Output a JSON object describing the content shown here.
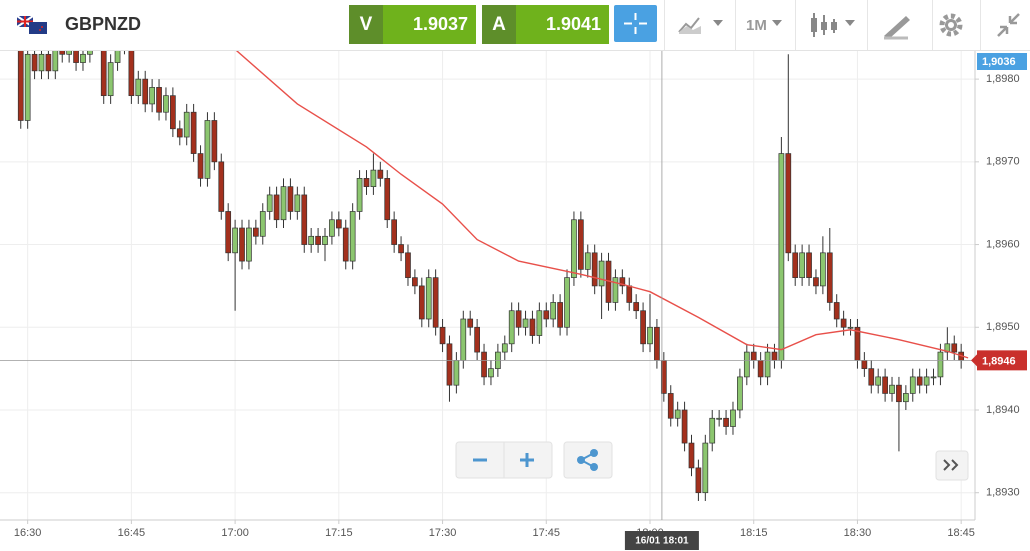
{
  "header": {
    "symbol": "GBPNZD",
    "bid_label": "V",
    "bid": "1.9037",
    "ask_label": "A",
    "ask": "1.9041",
    "timeframe": "1M"
  },
  "chart_data": {
    "type": "candlestick",
    "x": [
      "16:29",
      "16:30",
      "16:31",
      "16:32",
      "16:33",
      "16:34",
      "16:35",
      "16:36",
      "16:37",
      "16:38",
      "16:39",
      "16:40",
      "16:41",
      "16:42",
      "16:43",
      "16:44",
      "16:45",
      "16:46",
      "16:47",
      "16:48",
      "16:49",
      "16:50",
      "16:51",
      "16:52",
      "16:53",
      "16:54",
      "16:55",
      "16:56",
      "16:57",
      "16:58",
      "16:59",
      "17:00",
      "17:01",
      "17:02",
      "17:03",
      "17:04",
      "17:05",
      "17:06",
      "17:07",
      "17:08",
      "17:09",
      "17:10",
      "17:11",
      "17:12",
      "17:13",
      "17:14",
      "17:15",
      "17:16",
      "17:17",
      "17:18",
      "17:19",
      "17:20",
      "17:21",
      "17:22",
      "17:23",
      "17:24",
      "17:25",
      "17:26",
      "17:27",
      "17:28",
      "17:29",
      "17:30",
      "17:31",
      "17:32",
      "17:33",
      "17:34",
      "17:35",
      "17:36",
      "17:37",
      "17:38",
      "17:39",
      "17:40",
      "17:41",
      "17:42",
      "17:43",
      "17:44",
      "17:45",
      "17:46",
      "17:47",
      "17:48",
      "17:49",
      "17:50",
      "17:51",
      "17:52",
      "17:53",
      "17:54",
      "17:55",
      "17:56",
      "17:57",
      "17:58",
      "17:59",
      "18:00",
      "18:01",
      "18:02",
      "18:03",
      "18:04",
      "18:05",
      "18:06",
      "18:07",
      "18:08",
      "18:09",
      "18:10",
      "18:11",
      "18:12",
      "18:13",
      "18:14",
      "18:15",
      "18:16",
      "18:17",
      "18:18",
      "18:19",
      "18:20",
      "18:21",
      "18:22",
      "18:23",
      "18:24",
      "18:25",
      "18:26",
      "18:27",
      "18:28",
      "18:29",
      "18:30",
      "18:31",
      "18:32",
      "18:33",
      "18:34",
      "18:35",
      "18:36",
      "18:37",
      "18:38",
      "18:39",
      "18:40",
      "18:41",
      "18:42",
      "18:43",
      "18:44",
      "18:45"
    ],
    "open": [
      1.8984,
      1.8975,
      1.8983,
      1.8981,
      1.8983,
      1.8981,
      1.8984,
      1.8983,
      1.8984,
      1.8982,
      1.8983,
      1.8985,
      1.8986,
      1.8978,
      1.8982,
      1.8984,
      1.8985,
      1.8978,
      1.898,
      1.8977,
      1.8979,
      1.8976,
      1.8978,
      1.8974,
      1.8973,
      1.8976,
      1.8971,
      1.8968,
      1.8975,
      1.897,
      1.8964,
      1.8959,
      1.8962,
      1.8958,
      1.8962,
      1.8961,
      1.8964,
      1.8966,
      1.8963,
      1.8967,
      1.8964,
      1.8966,
      1.896,
      1.8961,
      1.896,
      1.8961,
      1.8963,
      1.8962,
      1.8958,
      1.8964,
      1.8968,
      1.8967,
      1.8969,
      1.8968,
      1.8963,
      1.896,
      1.8959,
      1.8956,
      1.8955,
      1.8951,
      1.8956,
      1.895,
      1.8948,
      1.8943,
      1.8946,
      1.8951,
      1.895,
      1.8947,
      1.8944,
      1.8945,
      1.8947,
      1.8948,
      1.8952,
      1.895,
      1.8951,
      1.8949,
      1.8952,
      1.8951,
      1.8953,
      1.895,
      1.8956,
      1.8963,
      1.8957,
      1.8959,
      1.8955,
      1.8958,
      1.8953,
      1.8956,
      1.8955,
      1.8953,
      1.8952,
      1.8948,
      1.895,
      1.8946,
      1.8942,
      1.8939,
      1.894,
      1.8936,
      1.8933,
      1.893,
      1.8936,
      1.8939,
      1.8939,
      1.8938,
      1.894,
      1.8944,
      1.8947,
      1.8946,
      1.8944,
      1.8947,
      1.8946,
      1.8971,
      1.8959,
      1.8956,
      1.8959,
      1.8956,
      1.8955,
      1.8959,
      1.8953,
      1.8951,
      1.895,
      1.895,
      1.8946,
      1.8945,
      1.8943,
      1.8944,
      1.8942,
      1.8943,
      1.8941,
      1.8942,
      1.8944,
      1.8943,
      1.8944,
      1.8944,
      1.8947,
      1.8948,
      1.8947
    ],
    "high": [
      1.8986,
      1.8984,
      1.8984,
      1.8984,
      1.8984,
      1.8985,
      1.8985,
      1.8985,
      1.8985,
      1.8984,
      1.8986,
      1.8987,
      1.8987,
      1.8983,
      1.8985,
      1.8987,
      1.8986,
      1.8981,
      1.8981,
      1.898,
      1.898,
      1.8979,
      1.8979,
      1.8975,
      1.8977,
      1.8977,
      1.8972,
      1.8976,
      1.8976,
      1.8971,
      1.8965,
      1.8963,
      1.8963,
      1.8963,
      1.8963,
      1.8965,
      1.8967,
      1.8967,
      1.8968,
      1.8968,
      1.8967,
      1.8967,
      1.8962,
      1.8962,
      1.8962,
      1.8964,
      1.8964,
      1.8963,
      1.8965,
      1.8969,
      1.8969,
      1.8971,
      1.897,
      1.8969,
      1.8964,
      1.8961,
      1.896,
      1.8957,
      1.8956,
      1.8957,
      1.8957,
      1.8951,
      1.8949,
      1.8947,
      1.8952,
      1.8952,
      1.8951,
      1.8948,
      1.8946,
      1.8948,
      1.8949,
      1.8953,
      1.8953,
      1.8952,
      1.8952,
      1.8953,
      1.8953,
      1.8954,
      1.8954,
      1.8957,
      1.8964,
      1.8964,
      1.896,
      1.896,
      1.8959,
      1.8959,
      1.8957,
      1.8957,
      1.8956,
      1.8954,
      1.8953,
      1.8954,
      1.8951,
      1.8947,
      1.8943,
      1.8941,
      1.8941,
      1.8937,
      1.8934,
      1.8937,
      1.894,
      1.894,
      1.894,
      1.8941,
      1.8945,
      1.8948,
      1.8948,
      1.8947,
      1.8948,
      1.8948,
      1.8973,
      1.8983,
      1.896,
      1.896,
      1.896,
      1.8957,
      1.8961,
      1.8962,
      1.8954,
      1.8952,
      1.8951,
      1.8951,
      1.8947,
      1.8946,
      1.8945,
      1.8945,
      1.8944,
      1.8944,
      1.8943,
      1.8945,
      1.8945,
      1.8945,
      1.8945,
      1.8948,
      1.895,
      1.8949,
      1.8948
    ],
    "low": [
      1.8974,
      1.8974,
      1.898,
      1.898,
      1.898,
      1.898,
      1.8982,
      1.8982,
      1.8981,
      1.8981,
      1.8982,
      1.8984,
      1.8977,
      1.8977,
      1.8981,
      1.8983,
      1.8977,
      1.8977,
      1.8976,
      1.8976,
      1.8975,
      1.8975,
      1.8973,
      1.8972,
      1.8972,
      1.897,
      1.8967,
      1.8967,
      1.8969,
      1.8963,
      1.8958,
      1.8952,
      1.8957,
      1.8957,
      1.896,
      1.896,
      1.8963,
      1.8962,
      1.8962,
      1.8963,
      1.8963,
      1.8959,
      1.8959,
      1.8959,
      1.8958,
      1.896,
      1.8961,
      1.8957,
      1.8957,
      1.8963,
      1.8966,
      1.8966,
      1.8967,
      1.8962,
      1.8959,
      1.8958,
      1.8955,
      1.8954,
      1.895,
      1.895,
      1.8949,
      1.8947,
      1.8941,
      1.8942,
      1.8945,
      1.8949,
      1.8946,
      1.8943,
      1.8943,
      1.8944,
      1.8946,
      1.8947,
      1.8949,
      1.8949,
      1.8948,
      1.8948,
      1.895,
      1.895,
      1.8949,
      1.8949,
      1.8955,
      1.8956,
      1.8956,
      1.8954,
      1.8951,
      1.8952,
      1.8952,
      1.8954,
      1.8952,
      1.8951,
      1.8947,
      1.8947,
      1.8945,
      1.8941,
      1.8938,
      1.8938,
      1.8935,
      1.8932,
      1.8929,
      1.8929,
      1.8935,
      1.8938,
      1.8937,
      1.8937,
      1.8939,
      1.8943,
      1.8945,
      1.8943,
      1.8943,
      1.8945,
      1.8945,
      1.8958,
      1.8955,
      1.8955,
      1.8955,
      1.8954,
      1.8954,
      1.8952,
      1.895,
      1.8949,
      1.8949,
      1.8945,
      1.8944,
      1.8942,
      1.8942,
      1.8941,
      1.8941,
      1.8935,
      1.894,
      1.8941,
      1.8942,
      1.8942,
      1.8943,
      1.8943,
      1.8946,
      1.8946,
      1.8945
    ],
    "close": [
      1.8975,
      1.8983,
      1.8981,
      1.8983,
      1.8981,
      1.8984,
      1.8983,
      1.8984,
      1.8982,
      1.8983,
      1.8985,
      1.8986,
      1.8978,
      1.8982,
      1.8984,
      1.8985,
      1.8978,
      1.898,
      1.8977,
      1.8979,
      1.8976,
      1.8978,
      1.8974,
      1.8973,
      1.8976,
      1.8971,
      1.8968,
      1.8975,
      1.897,
      1.8964,
      1.8959,
      1.8962,
      1.8958,
      1.8962,
      1.8961,
      1.8964,
      1.8966,
      1.8963,
      1.8967,
      1.8964,
      1.8966,
      1.896,
      1.8961,
      1.896,
      1.8961,
      1.8963,
      1.8962,
      1.8958,
      1.8964,
      1.8968,
      1.8967,
      1.8969,
      1.8968,
      1.8963,
      1.896,
      1.8959,
      1.8956,
      1.8955,
      1.8951,
      1.8956,
      1.895,
      1.8948,
      1.8943,
      1.8946,
      1.8951,
      1.895,
      1.8947,
      1.8944,
      1.8945,
      1.8947,
      1.8948,
      1.8952,
      1.895,
      1.8951,
      1.8949,
      1.8952,
      1.8951,
      1.8953,
      1.895,
      1.8956,
      1.8963,
      1.8957,
      1.8959,
      1.8955,
      1.8958,
      1.8953,
      1.8956,
      1.8955,
      1.8953,
      1.8952,
      1.8948,
      1.895,
      1.8946,
      1.8942,
      1.8939,
      1.894,
      1.8936,
      1.8933,
      1.893,
      1.8936,
      1.8939,
      1.8939,
      1.8938,
      1.894,
      1.8944,
      1.8947,
      1.8946,
      1.8944,
      1.8947,
      1.8946,
      1.8971,
      1.8959,
      1.8956,
      1.8959,
      1.8956,
      1.8955,
      1.8959,
      1.8953,
      1.8951,
      1.895,
      1.895,
      1.8946,
      1.8945,
      1.8943,
      1.8944,
      1.8942,
      1.8943,
      1.8941,
      1.8942,
      1.8944,
      1.8943,
      1.8944,
      1.8944,
      1.8947,
      1.8948,
      1.8947,
      1.8946
    ],
    "up_color": "#8cc66f",
    "down_color": "#a3301d",
    "xlim": [
      "16:26",
      "18:47"
    ],
    "xticks": [
      "16:30",
      "16:45",
      "17:00",
      "17:15",
      "17:30",
      "17:45",
      "18:00",
      "18:15",
      "18:30",
      "18:45"
    ],
    "ylim": [
      1.89267,
      1.89834
    ],
    "yticks": [
      {
        "value": 1.893,
        "label": "1,8930"
      },
      {
        "value": 1.894,
        "label": "1,8940"
      },
      {
        "value": 1.895,
        "label": "1,8950"
      },
      {
        "value": 1.896,
        "label": "1,8960"
      },
      {
        "value": 1.897,
        "label": "1,8970"
      },
      {
        "value": 1.898,
        "label": "1,8980"
      }
    ],
    "grid": true,
    "moving_average": {
      "color": "#e8504a",
      "x": [
        "17:00",
        "17:09",
        "17:19",
        "17:24",
        "17:30",
        "17:35",
        "17:41",
        "17:50",
        "17:56",
        "18:00",
        "18:07",
        "18:14",
        "18:19",
        "18:24",
        "18:29",
        "18:36",
        "18:43",
        "18:46"
      ],
      "values": [
        1.89836,
        1.8977,
        1.89718,
        1.89685,
        1.89649,
        1.89606,
        1.8958,
        1.89564,
        1.89552,
        1.89543,
        1.89512,
        1.89479,
        1.89473,
        1.89491,
        1.89497,
        1.89485,
        1.89471,
        1.89463
      ]
    },
    "last_price": {
      "value": 1.8946,
      "label": "1,8946"
    },
    "top_price_label": "1,9036",
    "crosshair": {
      "x": "18:01",
      "label": "16/01 18:01"
    }
  }
}
